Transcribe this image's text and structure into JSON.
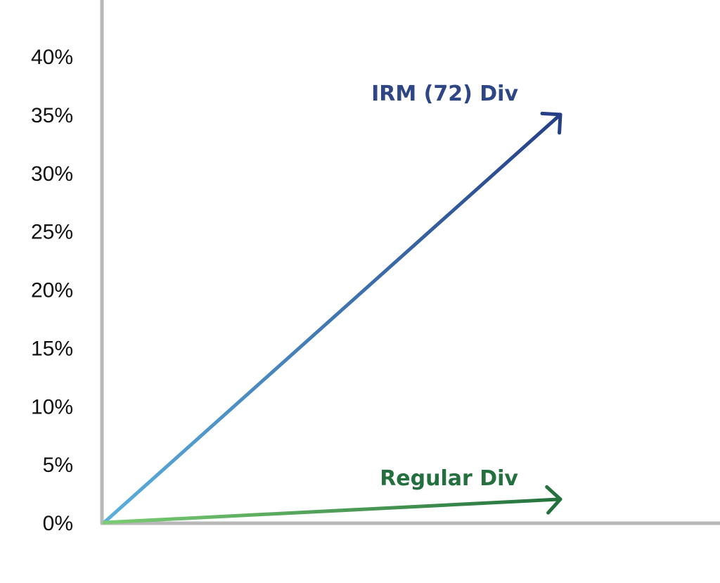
{
  "chart_data": {
    "type": "line",
    "title": "",
    "xlabel": "",
    "ylabel": "",
    "ylim": [
      0,
      40
    ],
    "y_ticks": [
      {
        "value": 0,
        "label": "0%"
      },
      {
        "value": 5,
        "label": "5%"
      },
      {
        "value": 10,
        "label": "10%"
      },
      {
        "value": 15,
        "label": "15%"
      },
      {
        "value": 20,
        "label": "20%"
      },
      {
        "value": 25,
        "label": "25%"
      },
      {
        "value": 30,
        "label": "30%"
      },
      {
        "value": 35,
        "label": "35%"
      },
      {
        "value": 40,
        "label": "40%"
      }
    ],
    "grid": false,
    "axis_color": "#b8b8b8",
    "series": [
      {
        "name": "IRM (72) Div",
        "start": 0,
        "end": 35,
        "color_start": "#5bb0dc",
        "color_end": "#263f87",
        "label_color": "#2e4686"
      },
      {
        "name": "Regular Div",
        "start": 0,
        "end": 2,
        "color_start": "#7ccc74",
        "color_end": "#23713d",
        "label_color": "#23703e"
      }
    ]
  }
}
